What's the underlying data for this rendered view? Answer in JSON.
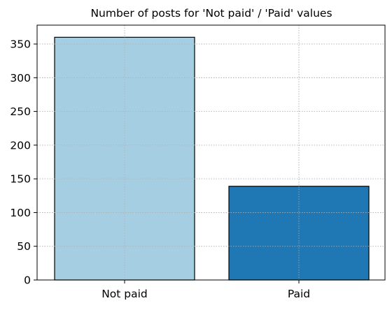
{
  "chart_data": {
    "type": "bar",
    "title": "Number of posts for 'Not paid' / 'Paid' values",
    "xlabel": "",
    "ylabel": "",
    "categories": [
      "Not paid",
      "Paid"
    ],
    "values": [
      360,
      139
    ],
    "ylim": [
      0,
      378
    ],
    "yticks": [
      0,
      50,
      100,
      150,
      200,
      250,
      300,
      350
    ],
    "bar_colors": [
      "#a6cee3",
      "#1f78b4"
    ],
    "edge_color": "#000000",
    "grid": true,
    "grid_style": "dotted",
    "grid_color": "#b0b0b0",
    "legend": false
  }
}
